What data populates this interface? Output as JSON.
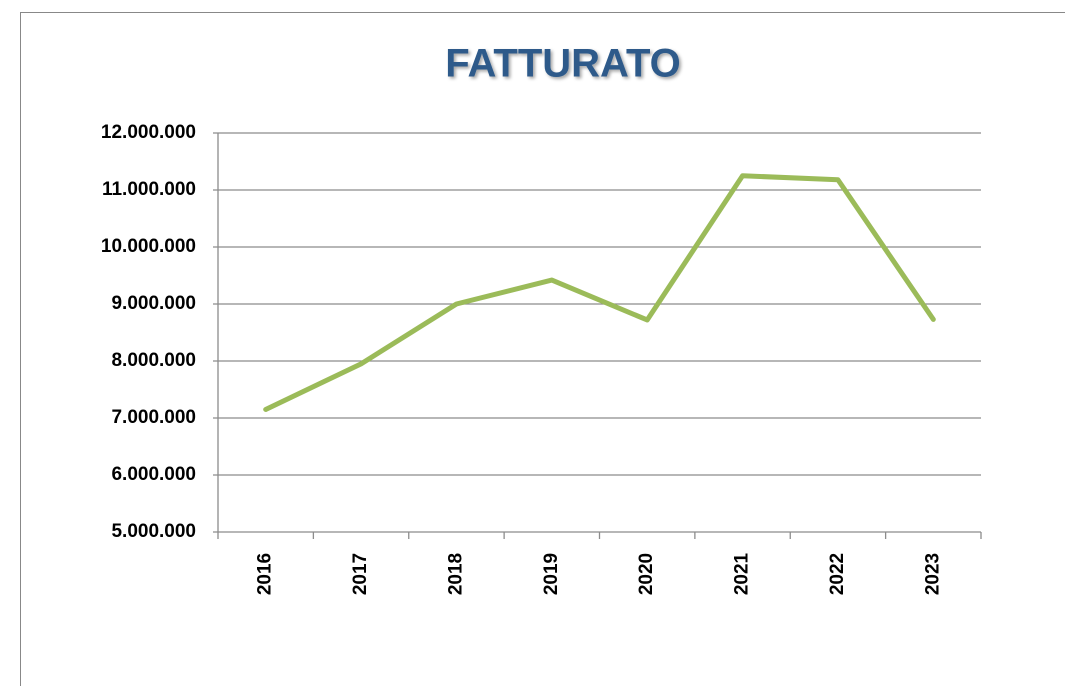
{
  "chart_data": {
    "type": "line",
    "title": "FATTURATO",
    "categories": [
      "2016",
      "2017",
      "2018",
      "2019",
      "2020",
      "2021",
      "2022",
      "2023"
    ],
    "series": [
      {
        "name": "Fatturato",
        "color": "#9bbb59",
        "values": [
          7150000,
          7950000,
          9000000,
          9420000,
          8720000,
          11250000,
          11180000,
          8730000
        ]
      }
    ],
    "ylim": [
      5000000,
      12000000
    ],
    "yticks": [
      {
        "value": 5000000,
        "label": "5.000.000"
      },
      {
        "value": 6000000,
        "label": "6.000.000"
      },
      {
        "value": 7000000,
        "label": "7.000.000"
      },
      {
        "value": 8000000,
        "label": "8.000.000"
      },
      {
        "value": 9000000,
        "label": "9.000.000"
      },
      {
        "value": 10000000,
        "label": "10.000.000"
      },
      {
        "value": 11000000,
        "label": "11.000.000"
      },
      {
        "value": 12000000,
        "label": "12.000.000"
      }
    ],
    "grid": true
  }
}
